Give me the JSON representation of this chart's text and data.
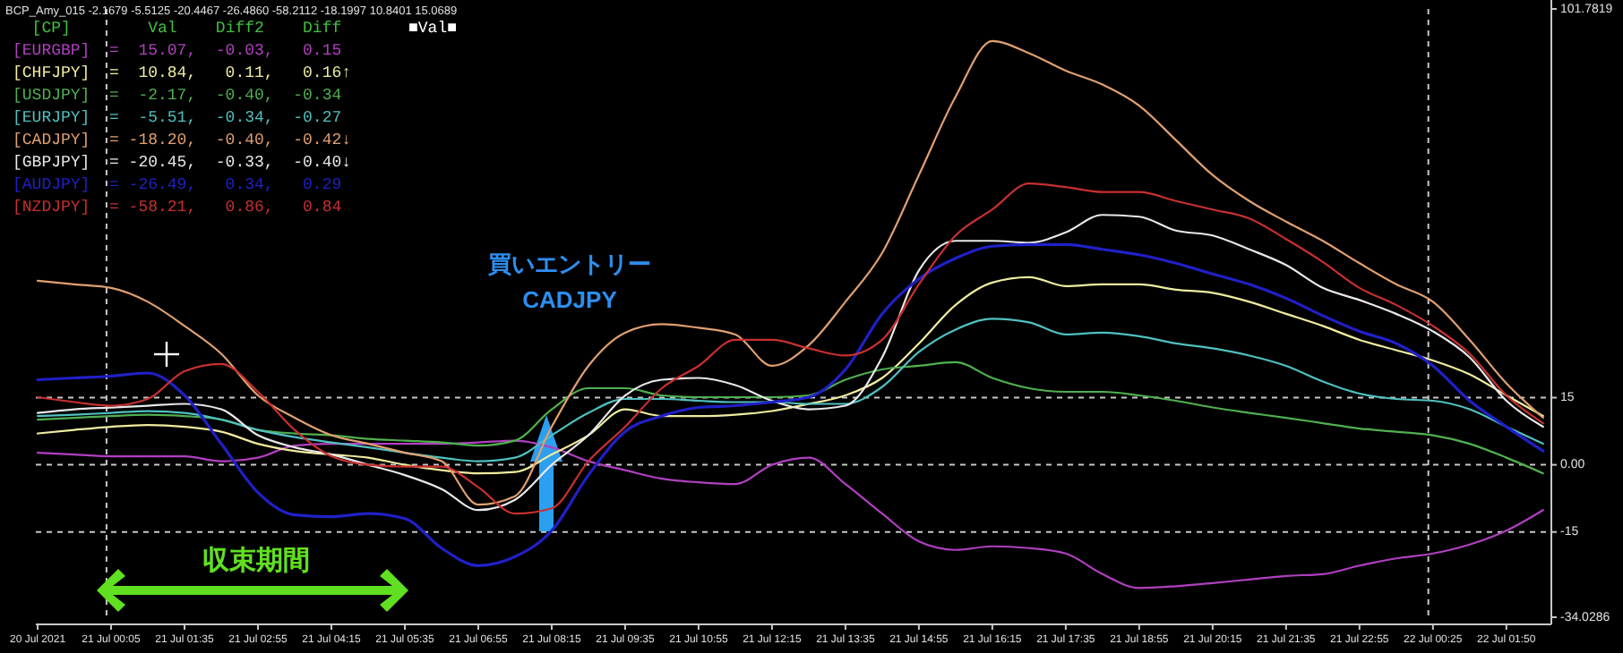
{
  "chart_data": {
    "type": "line",
    "title": "BCP_Amy_015 -2.1679 -5.5125 -20.4467 -26.4860 -58.2112 -18.1997 10.8401 15.0689",
    "legend_title": "  [CP]        Val    Diff2    Diff",
    "legend": "top left",
    "x": [
      "2021-07-20T22:45",
      "2021-07-20T23:25",
      "2021-07-21T00:05",
      "2021-07-21T00:45",
      "2021-07-21T01:25",
      "2021-07-21T02:05",
      "2021-07-21T02:45",
      "2021-07-21T03:25",
      "2021-07-21T04:05",
      "2021-07-21T04:45",
      "2021-07-21T05:25",
      "2021-07-21T06:05",
      "2021-07-21T06:45",
      "2021-07-21T07:25",
      "2021-07-21T08:05",
      "2021-07-21T08:45",
      "2021-07-21T09:25",
      "2021-07-21T10:05",
      "2021-07-21T10:45",
      "2021-07-21T11:25",
      "2021-07-21T12:05",
      "2021-07-21T12:45",
      "2021-07-21T13:25",
      "2021-07-21T14:05",
      "2021-07-21T14:45",
      "2021-07-21T15:25",
      "2021-07-21T16:05",
      "2021-07-21T16:45",
      "2021-07-21T17:25",
      "2021-07-21T18:05",
      "2021-07-21T18:45",
      "2021-07-21T19:25",
      "2021-07-21T20:05",
      "2021-07-21T20:45",
      "2021-07-21T21:25",
      "2021-07-21T22:05",
      "2021-07-21T22:45",
      "2021-07-21T23:25",
      "2021-07-22T00:05",
      "2021-07-22T00:45",
      "2021-07-22T01:25",
      "2021-07-22T02:05"
    ],
    "xlim": [
      "2021-07-20T22:43",
      "2021-07-22T02:14"
    ],
    "xticks": [
      {
        "value": "2021-07-20T22:45",
        "label": "20 Jul 2021"
      },
      {
        "value": "2021-07-21T00:05",
        "label": "21 Jul 00:05"
      },
      {
        "value": "2021-07-21T01:25",
        "label": "21 Jul 01:35"
      },
      {
        "value": "2021-07-21T02:45",
        "label": "21 Jul 02:55"
      },
      {
        "value": "2021-07-21T04:05",
        "label": "21 Jul 04:15"
      },
      {
        "value": "2021-07-21T05:25",
        "label": "21 Jul 05:35"
      },
      {
        "value": "2021-07-21T06:45",
        "label": "21 Jul 06:55"
      },
      {
        "value": "2021-07-21T08:05",
        "label": "21 Jul 08:15"
      },
      {
        "value": "2021-07-21T09:25",
        "label": "21 Jul 09:35"
      },
      {
        "value": "2021-07-21T10:45",
        "label": "21 Jul 10:55"
      },
      {
        "value": "2021-07-21T12:05",
        "label": "21 Jul 12:15"
      },
      {
        "value": "2021-07-21T13:25",
        "label": "21 Jul 13:35"
      },
      {
        "value": "2021-07-21T14:45",
        "label": "21 Jul 14:55"
      },
      {
        "value": "2021-07-21T16:05",
        "label": "21 Jul 16:15"
      },
      {
        "value": "2021-07-21T17:25",
        "label": "21 Jul 17:35"
      },
      {
        "value": "2021-07-21T18:45",
        "label": "21 Jul 18:55"
      },
      {
        "value": "2021-07-21T20:05",
        "label": "21 Jul 20:15"
      },
      {
        "value": "2021-07-21T21:25",
        "label": "21 Jul 21:35"
      },
      {
        "value": "2021-07-21T22:45",
        "label": "21 Jul 22:55"
      },
      {
        "value": "2021-07-22T00:05",
        "label": "22 Jul 00:25"
      },
      {
        "value": "2021-07-22T01:25",
        "label": "22 Jul 01:50"
      }
    ],
    "ylim": [
      -34.0286,
      101.7819
    ],
    "yticks": [
      {
        "value": 101.7819,
        "label": "101.7819"
      },
      15,
      {
        "value": 0,
        "label": "0.00"
      },
      -15,
      {
        "value": -34.0286,
        "label": "-34.0286"
      }
    ],
    "ref_lines": [
      {
        "axis": "y",
        "value": 15,
        "line_style": "dashed",
        "color": "#c8c8c8"
      },
      {
        "axis": "y",
        "value": 0,
        "line_style": "dashed",
        "color": "#c8c8c8"
      },
      {
        "axis": "y",
        "value": -15,
        "line_style": "dashed",
        "color": "#c8c8c8"
      },
      {
        "axis": "x",
        "value": "2021-07-21T00:00",
        "line_style": "dashed",
        "color": "#c8c8c8"
      },
      {
        "axis": "x",
        "value": "2021-07-22T00:00",
        "line_style": "dashed",
        "color": "#c8c8c8"
      }
    ],
    "series": [
      {
        "name": "[EURGBP]",
        "color": "#b040c0",
        "values": [
          2.7,
          2.3,
          1.9,
          1.9,
          1.9,
          0.8,
          1.6,
          4.3,
          4.7,
          4.7,
          4.7,
          4.7,
          5.0,
          5.4,
          3.9,
          0.8,
          -1.2,
          -3.1,
          -3.9,
          -4.3,
          0,
          1.6,
          -4.3,
          -10.9,
          -17.1,
          -19.0,
          -18.2,
          -18.6,
          -19.8,
          -24.4,
          -27.5,
          -27.1,
          -26.4,
          -25.6,
          -24.8,
          -24.4,
          -22.5,
          -20.9,
          -19.8,
          -17.8,
          -14.7,
          -10.1
        ]
      },
      {
        "name": "[CHFJPY]",
        "color": "#f0eca0",
        "values": [
          7.0,
          7.8,
          8.5,
          8.9,
          8.5,
          7.4,
          4.7,
          3.1,
          2.3,
          1.6,
          0,
          -1.2,
          -1.9,
          -1.6,
          2.3,
          6.6,
          12.4,
          10.9,
          10.9,
          11.2,
          12.0,
          13.6,
          15.5,
          19.4,
          27.1,
          35.7,
          40.7,
          41.9,
          39.9,
          40.3,
          40.3,
          39.1,
          38.4,
          36.4,
          33.7,
          31.0,
          27.9,
          25.6,
          23.3,
          20.2,
          15.5,
          10.9
        ]
      },
      {
        "name": "[USDJPY]",
        "color": "#50b050",
        "values": [
          10.1,
          10.5,
          10.9,
          11.2,
          10.9,
          10.1,
          7.8,
          7.0,
          6.6,
          5.8,
          5.4,
          5.0,
          4.3,
          5.4,
          12.4,
          17.1,
          17.1,
          15.5,
          15.1,
          15.1,
          15.1,
          15.5,
          19.0,
          21.3,
          22.1,
          22.9,
          19.4,
          17.1,
          16.3,
          16.3,
          15.5,
          14.3,
          12.8,
          11.6,
          10.5,
          9.3,
          8.1,
          7.4,
          6.6,
          4.7,
          1.6,
          -1.9
        ]
      },
      {
        "name": "[EURJPY]",
        "color": "#50c0c0",
        "values": [
          10.9,
          11.2,
          11.6,
          12.0,
          11.6,
          10.1,
          7.8,
          6.2,
          5.0,
          3.9,
          2.7,
          1.6,
          0.8,
          1.6,
          6.6,
          11.6,
          14.7,
          14.7,
          14.3,
          14.0,
          14.0,
          13.6,
          13.6,
          17.4,
          25.2,
          30.2,
          32.6,
          31.8,
          29.1,
          29.5,
          28.7,
          27.1,
          26.0,
          24.4,
          22.1,
          18.6,
          15.9,
          14.7,
          14.3,
          12.4,
          8.5,
          4.7
        ]
      },
      {
        "name": "[CADJPY]",
        "color": "#e0a070",
        "values": [
          41.1,
          40.3,
          39.5,
          36.4,
          31.0,
          24.8,
          15.5,
          10.5,
          6.6,
          4.7,
          2.7,
          0.8,
          -8.9,
          -7.0,
          8.5,
          22.1,
          29.5,
          31.4,
          30.6,
          29.1,
          22.1,
          26.7,
          36.4,
          47.3,
          64.7,
          82.2,
          94.6,
          91.9,
          88.0,
          84.9,
          80.2,
          72.5,
          64.7,
          58.9,
          54.3,
          50.0,
          45.0,
          40.3,
          36.4,
          27.9,
          18.2,
          10.5
        ]
      },
      {
        "name": "[GBPJPY]",
        "color": "#e8e8e8",
        "values": [
          11.6,
          12.4,
          12.8,
          13.2,
          13.6,
          12.4,
          6.6,
          3.9,
          2.3,
          0,
          -2.3,
          -5.4,
          -10.1,
          -7.8,
          0,
          6.6,
          15.5,
          19.0,
          19.4,
          17.8,
          14.3,
          12.4,
          13.2,
          24.0,
          43.4,
          50.0,
          50.0,
          49.6,
          51.9,
          55.8,
          55.4,
          52.3,
          51.2,
          48.1,
          44.6,
          39.5,
          36.8,
          33.7,
          29.8,
          24.0,
          14.3,
          8.5
        ]
      },
      {
        "name": "[AUDJPY]",
        "color": "#2020c8",
        "values": [
          19.0,
          19.4,
          19.8,
          20.5,
          15.5,
          4.7,
          -6.2,
          -11.2,
          -11.6,
          -10.9,
          -12.0,
          -18.6,
          -22.5,
          -20.5,
          -14.7,
          -2.3,
          7.4,
          10.9,
          12.8,
          13.2,
          14.0,
          15.1,
          21.3,
          33.7,
          41.5,
          46.1,
          48.8,
          49.2,
          49.2,
          48.1,
          46.9,
          45.0,
          42.6,
          40.3,
          37.2,
          33.3,
          29.8,
          27.1,
          22.1,
          14.3,
          8.5,
          3.1
        ]
      },
      {
        "name": "[NZDJPY]",
        "color": "#c83030",
        "values": [
          15.1,
          14.0,
          13.2,
          14.7,
          20.9,
          22.5,
          16.3,
          7.8,
          1.9,
          0,
          -0.4,
          -0.4,
          -5.0,
          -10.9,
          -9.7,
          0.8,
          8.5,
          17.1,
          22.1,
          27.9,
          27.9,
          26.0,
          24.4,
          27.9,
          40.3,
          51.2,
          57.0,
          62.8,
          62.0,
          60.9,
          60.9,
          58.9,
          57.0,
          55.0,
          50.4,
          45.3,
          39.5,
          35.7,
          31.0,
          24.8,
          15.5,
          9.3
        ]
      }
    ],
    "annotations": [
      "=  15.07,  -0.03,   0.15",
      "=  10.84,   0.11,   0.16↑",
      "=  -2.17,  -0.40,  -0.34",
      "=  -5.51,  -0.34,  -0.27",
      "= -18.20,  -0.40,  -0.42↓",
      "= -20.45,  -0.33,  -0.40↓",
      "= -26.49,   0.34,   0.29",
      "= -58.21,   0.86,   0.84",
      "■Val■",
      "買いエントリー",
      "CADJPY",
      "収束期間"
    ]
  }
}
